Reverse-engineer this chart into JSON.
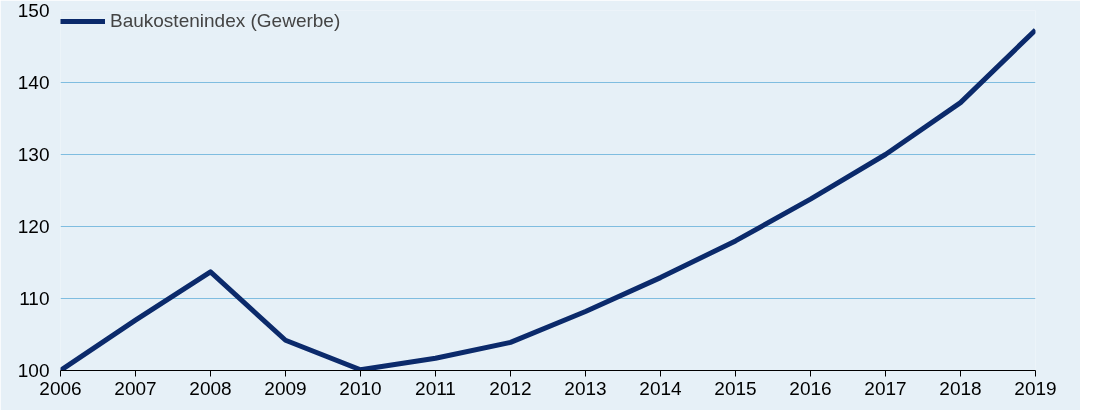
{
  "chart_data": {
    "type": "line",
    "x": [
      2006,
      2007,
      2008,
      2009,
      2010,
      2011,
      2012,
      2013,
      2014,
      2015,
      2016,
      2017,
      2018,
      2019
    ],
    "series": [
      {
        "name": "Baukostenindex (Gewerbe)",
        "color": "#0b2a6b",
        "values": [
          100,
          107,
          113.7,
          104.2,
          100.1,
          101.7,
          103.9,
          108.2,
          112.9,
          118,
          123.8,
          130,
          137.2,
          147.3
        ]
      }
    ],
    "xlim": [
      2006,
      2019
    ],
    "xticks": [
      2006,
      2007,
      2008,
      2009,
      2010,
      2011,
      2012,
      2013,
      2014,
      2015,
      2016,
      2017,
      2018,
      2019
    ],
    "ylim": [
      100,
      150
    ],
    "yticks": [
      100,
      110,
      120,
      130,
      140,
      150
    ],
    "grid": "y",
    "legend": "top left",
    "marker": "none",
    "line_style": "solid"
  }
}
